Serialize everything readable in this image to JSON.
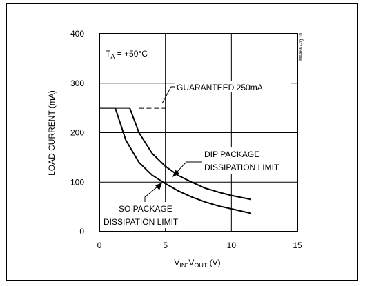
{
  "chart_data": {
    "type": "line",
    "title": "",
    "figure_id": "MAX667-fig 10",
    "xlabel": {
      "v": "V",
      "in_sub": "IN",
      "dash": "-V",
      "out_sub": "OUT",
      "unit": " (V)"
    },
    "ylabel": "LOAD CURRENT (mA)",
    "xlim": [
      0,
      15
    ],
    "ylim": [
      0,
      400
    ],
    "x_ticks": [
      0,
      5,
      10,
      15
    ],
    "y_ticks": [
      0,
      100,
      200,
      300,
      400
    ],
    "x_tick_labels": [
      "0",
      "5",
      "10",
      "15"
    ],
    "y_tick_labels": [
      "0",
      "100",
      "200",
      "300",
      "400"
    ],
    "grid": true,
    "condition": {
      "t": "T",
      "sub": "A",
      "rest": " = +50°C"
    },
    "annotations": {
      "guaranteed": "GUARANTEED 250mA",
      "dip_line1": "DIP PACKAGE",
      "dip_line2": "DISSIPATION LIMIT",
      "so_line1": "SO PACKAGE",
      "so_line2": "DISSIPATION LIMIT"
    },
    "series": [
      {
        "id": "dip",
        "x": [
          0,
          2.3,
          3,
          4,
          5,
          6,
          7,
          8,
          9,
          10,
          11.5
        ],
        "y": [
          250,
          250,
          200,
          158,
          132,
          113,
          100,
          88,
          80,
          73,
          65
        ]
      },
      {
        "id": "so",
        "x": [
          0,
          1.2,
          2,
          3,
          4,
          5,
          6,
          7,
          8,
          9,
          10,
          11.5
        ],
        "y": [
          250,
          250,
          185,
          140,
          114,
          97,
          82,
          70,
          60,
          52,
          46,
          37
        ]
      },
      {
        "id": "guaranteed",
        "style": "dashed",
        "x": [
          3,
          5
        ],
        "y": [
          250,
          250
        ]
      }
    ]
  }
}
